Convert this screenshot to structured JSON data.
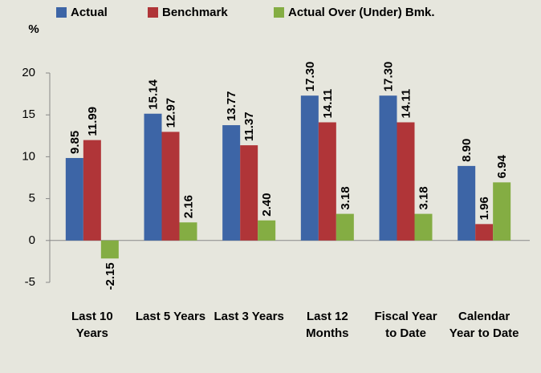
{
  "chart_data": {
    "type": "bar",
    "y_label": "%",
    "categories": [
      "Last 10 Years",
      "Last 5 Years",
      "Last 3 Years",
      "Last 12 Months",
      "Fiscal Year to Date",
      "Calendar Year to Date"
    ],
    "series": [
      {
        "name": "Actual",
        "color": "#3d65a6",
        "values": [
          9.85,
          15.14,
          13.77,
          17.3,
          17.3,
          8.9
        ],
        "value_labels": [
          "9.85",
          "15.14",
          "13.77",
          "17.30",
          "17.30",
          "8.90"
        ]
      },
      {
        "name": "Benchmark",
        "color": "#b03538",
        "values": [
          11.99,
          12.97,
          11.37,
          14.11,
          14.11,
          1.96
        ],
        "value_labels": [
          "11.99",
          "12.97",
          "11.37",
          "14.11",
          "14.11",
          "1.96"
        ]
      },
      {
        "name": "Actual Over (Under) Bmk.",
        "color": "#84ad43",
        "values": [
          -2.15,
          2.16,
          2.4,
          3.18,
          3.18,
          6.94
        ],
        "value_labels": [
          "-2.15",
          "2.16",
          "2.40",
          "3.18",
          "3.18",
          "6.94"
        ]
      }
    ],
    "ylim": [
      -5,
      20
    ],
    "yticks": [
      -5,
      0,
      5,
      10,
      15,
      20
    ],
    "grid": false,
    "legend": "top"
  }
}
